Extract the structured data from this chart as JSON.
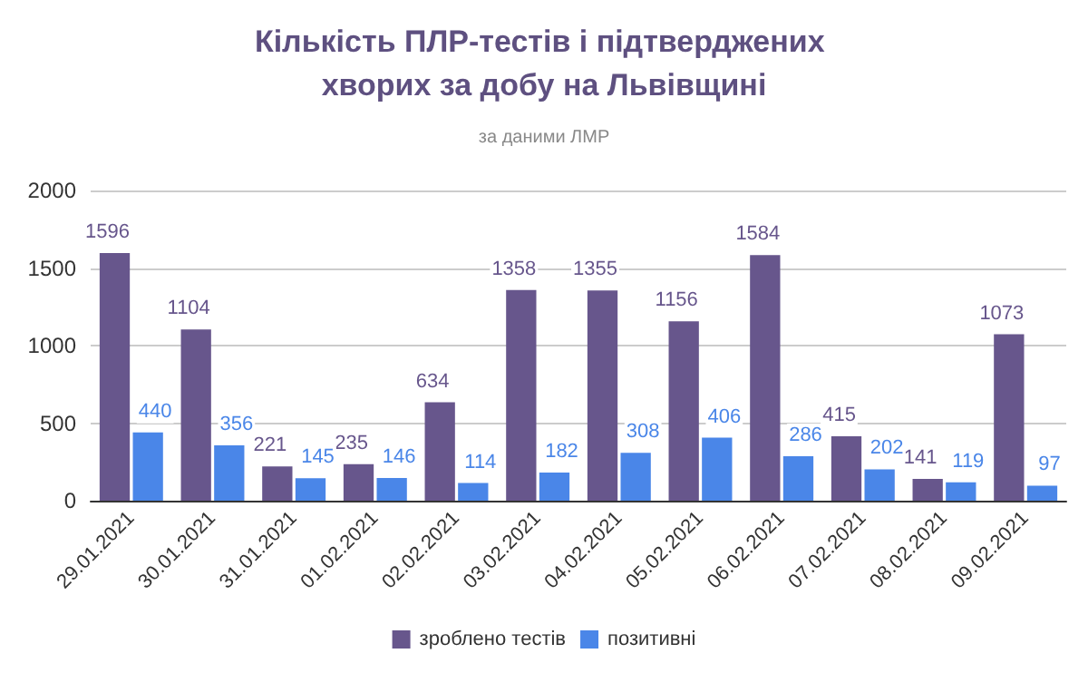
{
  "chart_data": {
    "type": "bar",
    "title": "Кількість ПЛР-тестів і підтверджених хворих за добу на Львівщині",
    "subtitle": "за даними ЛМР",
    "categories": [
      "29.01.2021",
      "30.01.2021",
      "31.01.2021",
      "01.02.2021",
      "02.02.2021",
      "03.02.2021",
      "04.02.2021",
      "05.02.2021",
      "06.02.2021",
      "07.02.2021",
      "08.02.2021",
      "09.02.2021"
    ],
    "series": [
      {
        "name": "зроблено тестів",
        "color": "#67568c",
        "values": [
          1596,
          1104,
          221,
          235,
          634,
          1358,
          1355,
          1156,
          1584,
          415,
          141,
          1073
        ]
      },
      {
        "name": "позитивні",
        "color": "#4a86e8",
        "values": [
          440,
          356,
          145,
          146,
          114,
          182,
          308,
          406,
          286,
          202,
          119,
          97
        ]
      }
    ],
    "ylim": [
      0,
      2000
    ],
    "yticks": [
      0,
      500,
      1000,
      1500,
      2000
    ],
    "grid": "y",
    "legend": "bottom",
    "data_labels": true
  }
}
